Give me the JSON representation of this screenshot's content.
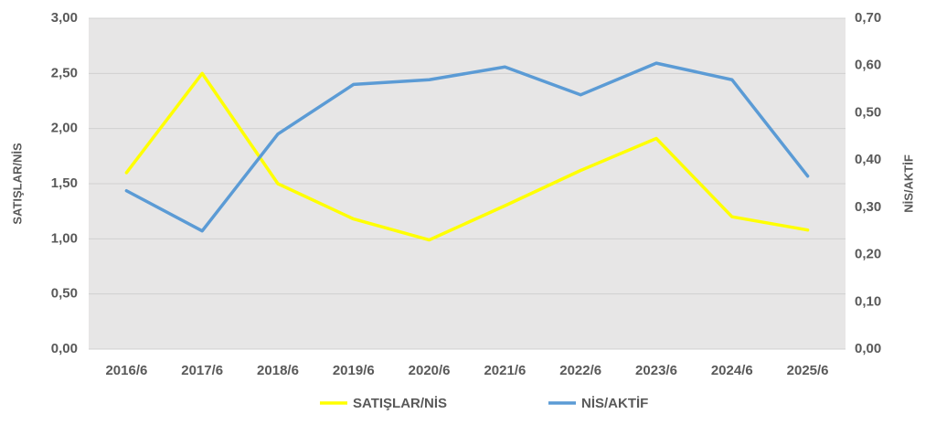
{
  "chart_data": {
    "type": "line",
    "categories": [
      "2016/6",
      "2017/6",
      "2018/6",
      "2019/6",
      "2020/6",
      "2021/6",
      "2022/6",
      "2023/6",
      "2024/6",
      "2025/6"
    ],
    "ylabel": "SATIŞLAR/NİS",
    "y2label": "NİS/AKTİF",
    "ylim": [
      0,
      3
    ],
    "yticks": [
      {
        "value": 0,
        "label": "0,00"
      },
      {
        "value": 0.5,
        "label": "0,50"
      },
      {
        "value": 1,
        "label": "1,00"
      },
      {
        "value": 1.5,
        "label": "1,50"
      },
      {
        "value": 2,
        "label": "2,00"
      },
      {
        "value": 2.5,
        "label": "2,50"
      },
      {
        "value": 3,
        "label": "3,00"
      }
    ],
    "y2lim": [
      0,
      0.7
    ],
    "y2ticks": [
      {
        "value": 0,
        "label": "0,00"
      },
      {
        "value": 0.1,
        "label": "0,10"
      },
      {
        "value": 0.2,
        "label": "0,20"
      },
      {
        "value": 0.3,
        "label": "0,30"
      },
      {
        "value": 0.4,
        "label": "0,40"
      },
      {
        "value": 0.5,
        "label": "0,50"
      },
      {
        "value": 0.6,
        "label": "0,60"
      },
      {
        "value": 0.7,
        "label": "0,70"
      }
    ],
    "grid": true,
    "legend": "bottom",
    "series": [
      {
        "name": "SATIŞLAR/NİS",
        "color": "#ffff00",
        "values": [
          1.6,
          2.5,
          1.5,
          1.18,
          0.99,
          1.3,
          1.62,
          1.91,
          1.2,
          1.08
        ]
      },
      {
        "name": "NİS/AKTİF",
        "color": "#5b9bd5",
        "axis": "y2",
        "values": [
          0.335,
          0.25,
          0.455,
          0.56,
          0.57,
          0.597,
          0.538,
          0.605,
          0.57,
          0.366
        ]
      }
    ]
  }
}
